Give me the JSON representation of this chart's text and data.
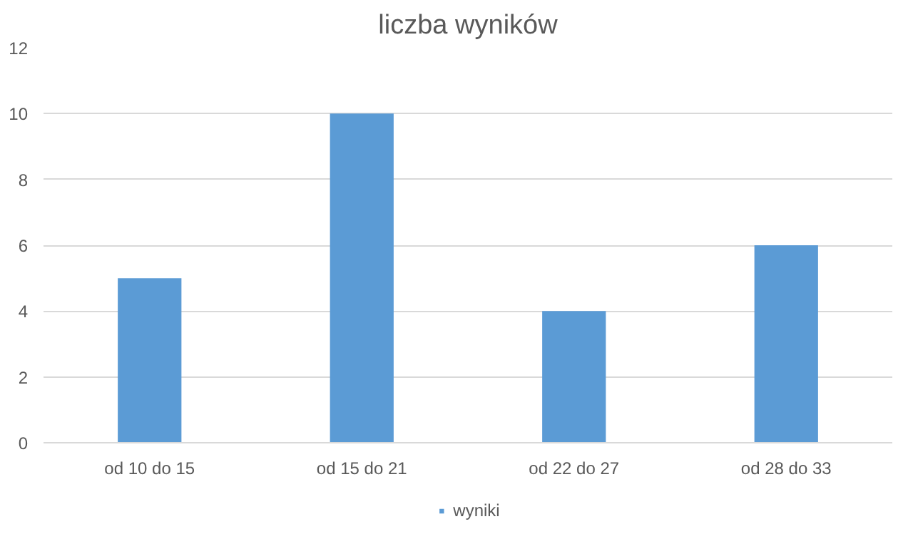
{
  "chart_data": {
    "type": "bar",
    "title": "liczba wyników",
    "categories": [
      "od 10 do 15",
      "od 15 do 21",
      "od 22 do 27",
      "od 28 do 33"
    ],
    "series": [
      {
        "name": "wyniki",
        "color": "#5b9bd5",
        "values": [
          5,
          10,
          4,
          6
        ]
      }
    ],
    "ylim": [
      0,
      12
    ],
    "yticks": [
      0,
      2,
      4,
      6,
      8,
      10,
      12
    ],
    "grid": "y",
    "legend": "bottom"
  }
}
